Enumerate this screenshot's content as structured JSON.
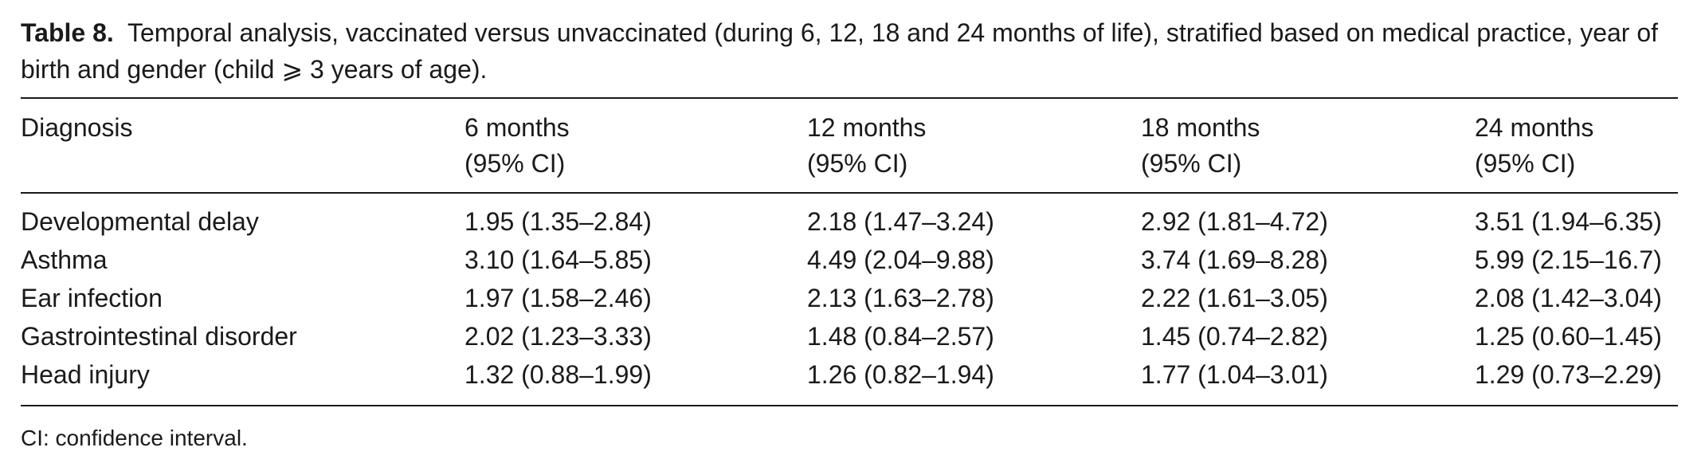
{
  "caption": {
    "label": "Table 8.",
    "text": "Temporal analysis, vaccinated versus unvaccinated (during 6, 12, 18 and 24 months of life), stratified based on medical practice, year of birth and gender (child ⩾ 3 years of age)."
  },
  "table": {
    "headers": [
      {
        "line1": "Diagnosis",
        "line2": ""
      },
      {
        "line1": "6 months",
        "line2": "(95% CI)"
      },
      {
        "line1": "12 months",
        "line2": "(95% CI)"
      },
      {
        "line1": "18 months",
        "line2": "(95% CI)"
      },
      {
        "line1": "24 months",
        "line2": "(95% CI)"
      }
    ],
    "rows": [
      {
        "diagnosis": "Developmental delay",
        "m6": "1.95 (1.35–2.84)",
        "m12": "2.18 (1.47–3.24)",
        "m18": "2.92 (1.81–4.72)",
        "m24": "3.51 (1.94–6.35)"
      },
      {
        "diagnosis": "Asthma",
        "m6": "3.10 (1.64–5.85)",
        "m12": "4.49 (2.04–9.88)",
        "m18": "3.74 (1.69–8.28)",
        "m24": "5.99 (2.15–16.7)"
      },
      {
        "diagnosis": "Ear infection",
        "m6": "1.97 (1.58–2.46)",
        "m12": "2.13 (1.63–2.78)",
        "m18": "2.22 (1.61–3.05)",
        "m24": "2.08 (1.42–3.04)"
      },
      {
        "diagnosis": "Gastrointestinal disorder",
        "m6": "2.02 (1.23–3.33)",
        "m12": "1.48 (0.84–2.57)",
        "m18": "1.45 (0.74–2.82)",
        "m24": "1.25 (0.60–1.45)"
      },
      {
        "diagnosis": "Head injury",
        "m6": "1.32 (0.88–1.99)",
        "m12": "1.26 (0.82–1.94)",
        "m18": "1.77 (1.04–3.01)",
        "m24": "1.29 (0.73–2.29)"
      }
    ]
  },
  "footnote": "CI: confidence interval."
}
